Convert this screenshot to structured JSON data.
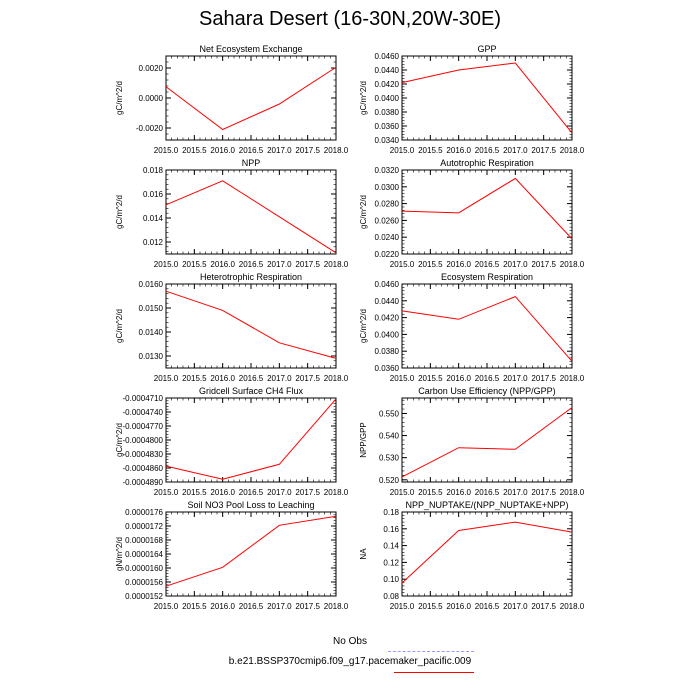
{
  "figure": {
    "title": "Sahara Desert (16-30N,20W-30E)"
  },
  "chart_data": [
    {
      "type": "line",
      "title": "Net Ecosystem Exchange",
      "ylabel": "gC/m^2/d",
      "x": [
        2015,
        2016,
        2017,
        2018
      ],
      "ylim": [
        -0.0028,
        0.0028
      ],
      "yticks": [
        -0.002,
        0.0,
        0.002
      ],
      "ytick_labels": [
        "-0.0020",
        "0.0000",
        "0.0020"
      ],
      "series": [
        {
          "values": [
            0.00075,
            -0.0021,
            -0.0004,
            0.00205
          ],
          "color": "#ff0000"
        }
      ]
    },
    {
      "type": "line",
      "title": "GPP",
      "ylabel": "gC/m^2/d",
      "x": [
        2015,
        2016,
        2017,
        2018
      ],
      "ylim": [
        0.034,
        0.046
      ],
      "yticks": [
        0.034,
        0.036,
        0.038,
        0.04,
        0.042,
        0.044,
        0.046
      ],
      "ytick_labels": [
        "0.0340",
        "0.0360",
        "0.0380",
        "0.0400",
        "0.0420",
        "0.0440",
        "0.0460"
      ],
      "series": [
        {
          "values": [
            0.0422,
            0.044,
            0.045,
            0.035
          ],
          "color": "#ff0000"
        }
      ]
    },
    {
      "type": "line",
      "title": "NPP",
      "ylabel": "gC/m^2/d",
      "x": [
        2015,
        2016,
        2017,
        2018
      ],
      "ylim": [
        0.011,
        0.018
      ],
      "yticks": [
        0.012,
        0.014,
        0.016,
        0.018
      ],
      "ytick_labels": [
        "0.012",
        "0.014",
        "0.016",
        "0.018"
      ],
      "series": [
        {
          "values": [
            0.0151,
            0.0171,
            0.0141,
            0.0111
          ],
          "color": "#ff0000"
        }
      ]
    },
    {
      "type": "line",
      "title": "Autotrophic Respiration",
      "ylabel": "gC/m^2/d",
      "x": [
        2015,
        2016,
        2017,
        2018
      ],
      "ylim": [
        0.022,
        0.032
      ],
      "yticks": [
        0.022,
        0.024,
        0.026,
        0.028,
        0.03,
        0.032
      ],
      "ytick_labels": [
        "0.0220",
        "0.0240",
        "0.0260",
        "0.0280",
        "0.0300",
        "0.0320"
      ],
      "series": [
        {
          "values": [
            0.0271,
            0.0269,
            0.031,
            0.0238
          ],
          "color": "#ff0000"
        }
      ]
    },
    {
      "type": "line",
      "title": "Heterotrophic Respiration",
      "ylabel": "gC/m^2/d",
      "x": [
        2015,
        2016,
        2017,
        2018
      ],
      "ylim": [
        0.0125,
        0.016
      ],
      "yticks": [
        0.013,
        0.014,
        0.015,
        0.016
      ],
      "ytick_labels": [
        "0.0130",
        "0.0140",
        "0.0150",
        "0.0160"
      ],
      "series": [
        {
          "values": [
            0.0157,
            0.0149,
            0.01355,
            0.0129
          ],
          "color": "#ff0000"
        }
      ]
    },
    {
      "type": "line",
      "title": "Ecosystem Respiration",
      "ylabel": "gC/m^2/d",
      "x": [
        2015,
        2016,
        2017,
        2018
      ],
      "ylim": [
        0.036,
        0.046
      ],
      "yticks": [
        0.036,
        0.038,
        0.04,
        0.042,
        0.044,
        0.046
      ],
      "ytick_labels": [
        "0.0360",
        "0.0380",
        "0.0400",
        "0.0420",
        "0.0440",
        "0.0460"
      ],
      "series": [
        {
          "values": [
            0.0428,
            0.0418,
            0.0445,
            0.0368
          ],
          "color": "#ff0000"
        }
      ]
    },
    {
      "type": "line",
      "title": "Gridcell Surface CH4 Flux",
      "ylabel": "gC/m^2/d",
      "x": [
        2015,
        2016,
        2017,
        2018
      ],
      "ylim": [
        -0.000489,
        -0.000471
      ],
      "yticks": [
        -0.000489,
        -0.000486,
        -0.000483,
        -0.00048,
        -0.000477,
        -0.000474,
        -0.000471
      ],
      "ytick_labels": [
        "-0.0004890",
        "-0.0004860",
        "-0.0004830",
        "-0.0004800",
        "-0.0004770",
        "-0.0004740",
        "-0.0004710"
      ],
      "series": [
        {
          "values": [
            -0.0004856,
            -0.0004884,
            -0.0004852,
            -0.0004712
          ],
          "color": "#ff0000"
        }
      ]
    },
    {
      "type": "line",
      "title": "Carbon Use Efficiency (NPP/GPP)",
      "ylabel": "NPP/GPP",
      "x": [
        2015,
        2016,
        2017,
        2018
      ],
      "ylim": [
        0.519,
        0.557
      ],
      "yticks": [
        0.52,
        0.53,
        0.54,
        0.55
      ],
      "ytick_labels": [
        "0.520",
        "0.530",
        "0.540",
        "0.550"
      ],
      "series": [
        {
          "values": [
            0.5213,
            0.5345,
            0.5338,
            0.5527
          ],
          "color": "#ff0000"
        }
      ]
    },
    {
      "type": "line",
      "title": "Soil NO3 Pool Loss to Leaching",
      "ylabel": "gN/m^2/d",
      "x": [
        2015,
        2016,
        2017,
        2018
      ],
      "ylim": [
        1.52e-05,
        1.76e-05
      ],
      "yticks": [
        1.52e-05,
        1.56e-05,
        1.6e-05,
        1.64e-05,
        1.68e-05,
        1.72e-05,
        1.76e-05
      ],
      "ytick_labels": [
        "0.0000152",
        "0.0000156",
        "0.0000160",
        "0.0000164",
        "0.0000168",
        "0.0000172",
        "0.0000176"
      ],
      "series": [
        {
          "values": [
            1.548e-05,
            1.602e-05,
            1.722e-05,
            1.748e-05
          ],
          "color": "#ff0000"
        }
      ]
    },
    {
      "type": "line",
      "title": "NPP_NUPTAKE/(NPP_NUPTAKE+NPP)",
      "ylabel": "NA",
      "x": [
        2015,
        2016,
        2017,
        2018
      ],
      "ylim": [
        0.08,
        0.18
      ],
      "yticks": [
        0.08,
        0.1,
        0.12,
        0.14,
        0.16,
        0.18
      ],
      "ytick_labels": [
        "0.08",
        "0.10",
        "0.12",
        "0.14",
        "0.16",
        "0.18"
      ],
      "series": [
        {
          "values": [
            0.0955,
            0.158,
            0.168,
            0.156
          ],
          "color": "#ff0000"
        }
      ]
    }
  ],
  "x_axis": {
    "ticks": [
      2015.0,
      2015.5,
      2016.0,
      2016.5,
      2017.0,
      2017.5,
      2018.0
    ],
    "tick_labels": [
      "2015.0",
      "2015.5",
      "2016.0",
      "2016.5",
      "2017.0",
      "2017.5",
      "2018.0"
    ]
  },
  "legend": {
    "entries": [
      {
        "label": "No Obs",
        "color": "#9999ff",
        "style": "dashed"
      },
      {
        "label": "b.e21.BSSP370cmip6.f09_g17.pacemaker_pacific.009",
        "color": "#ff0000",
        "style": "solid"
      }
    ]
  }
}
